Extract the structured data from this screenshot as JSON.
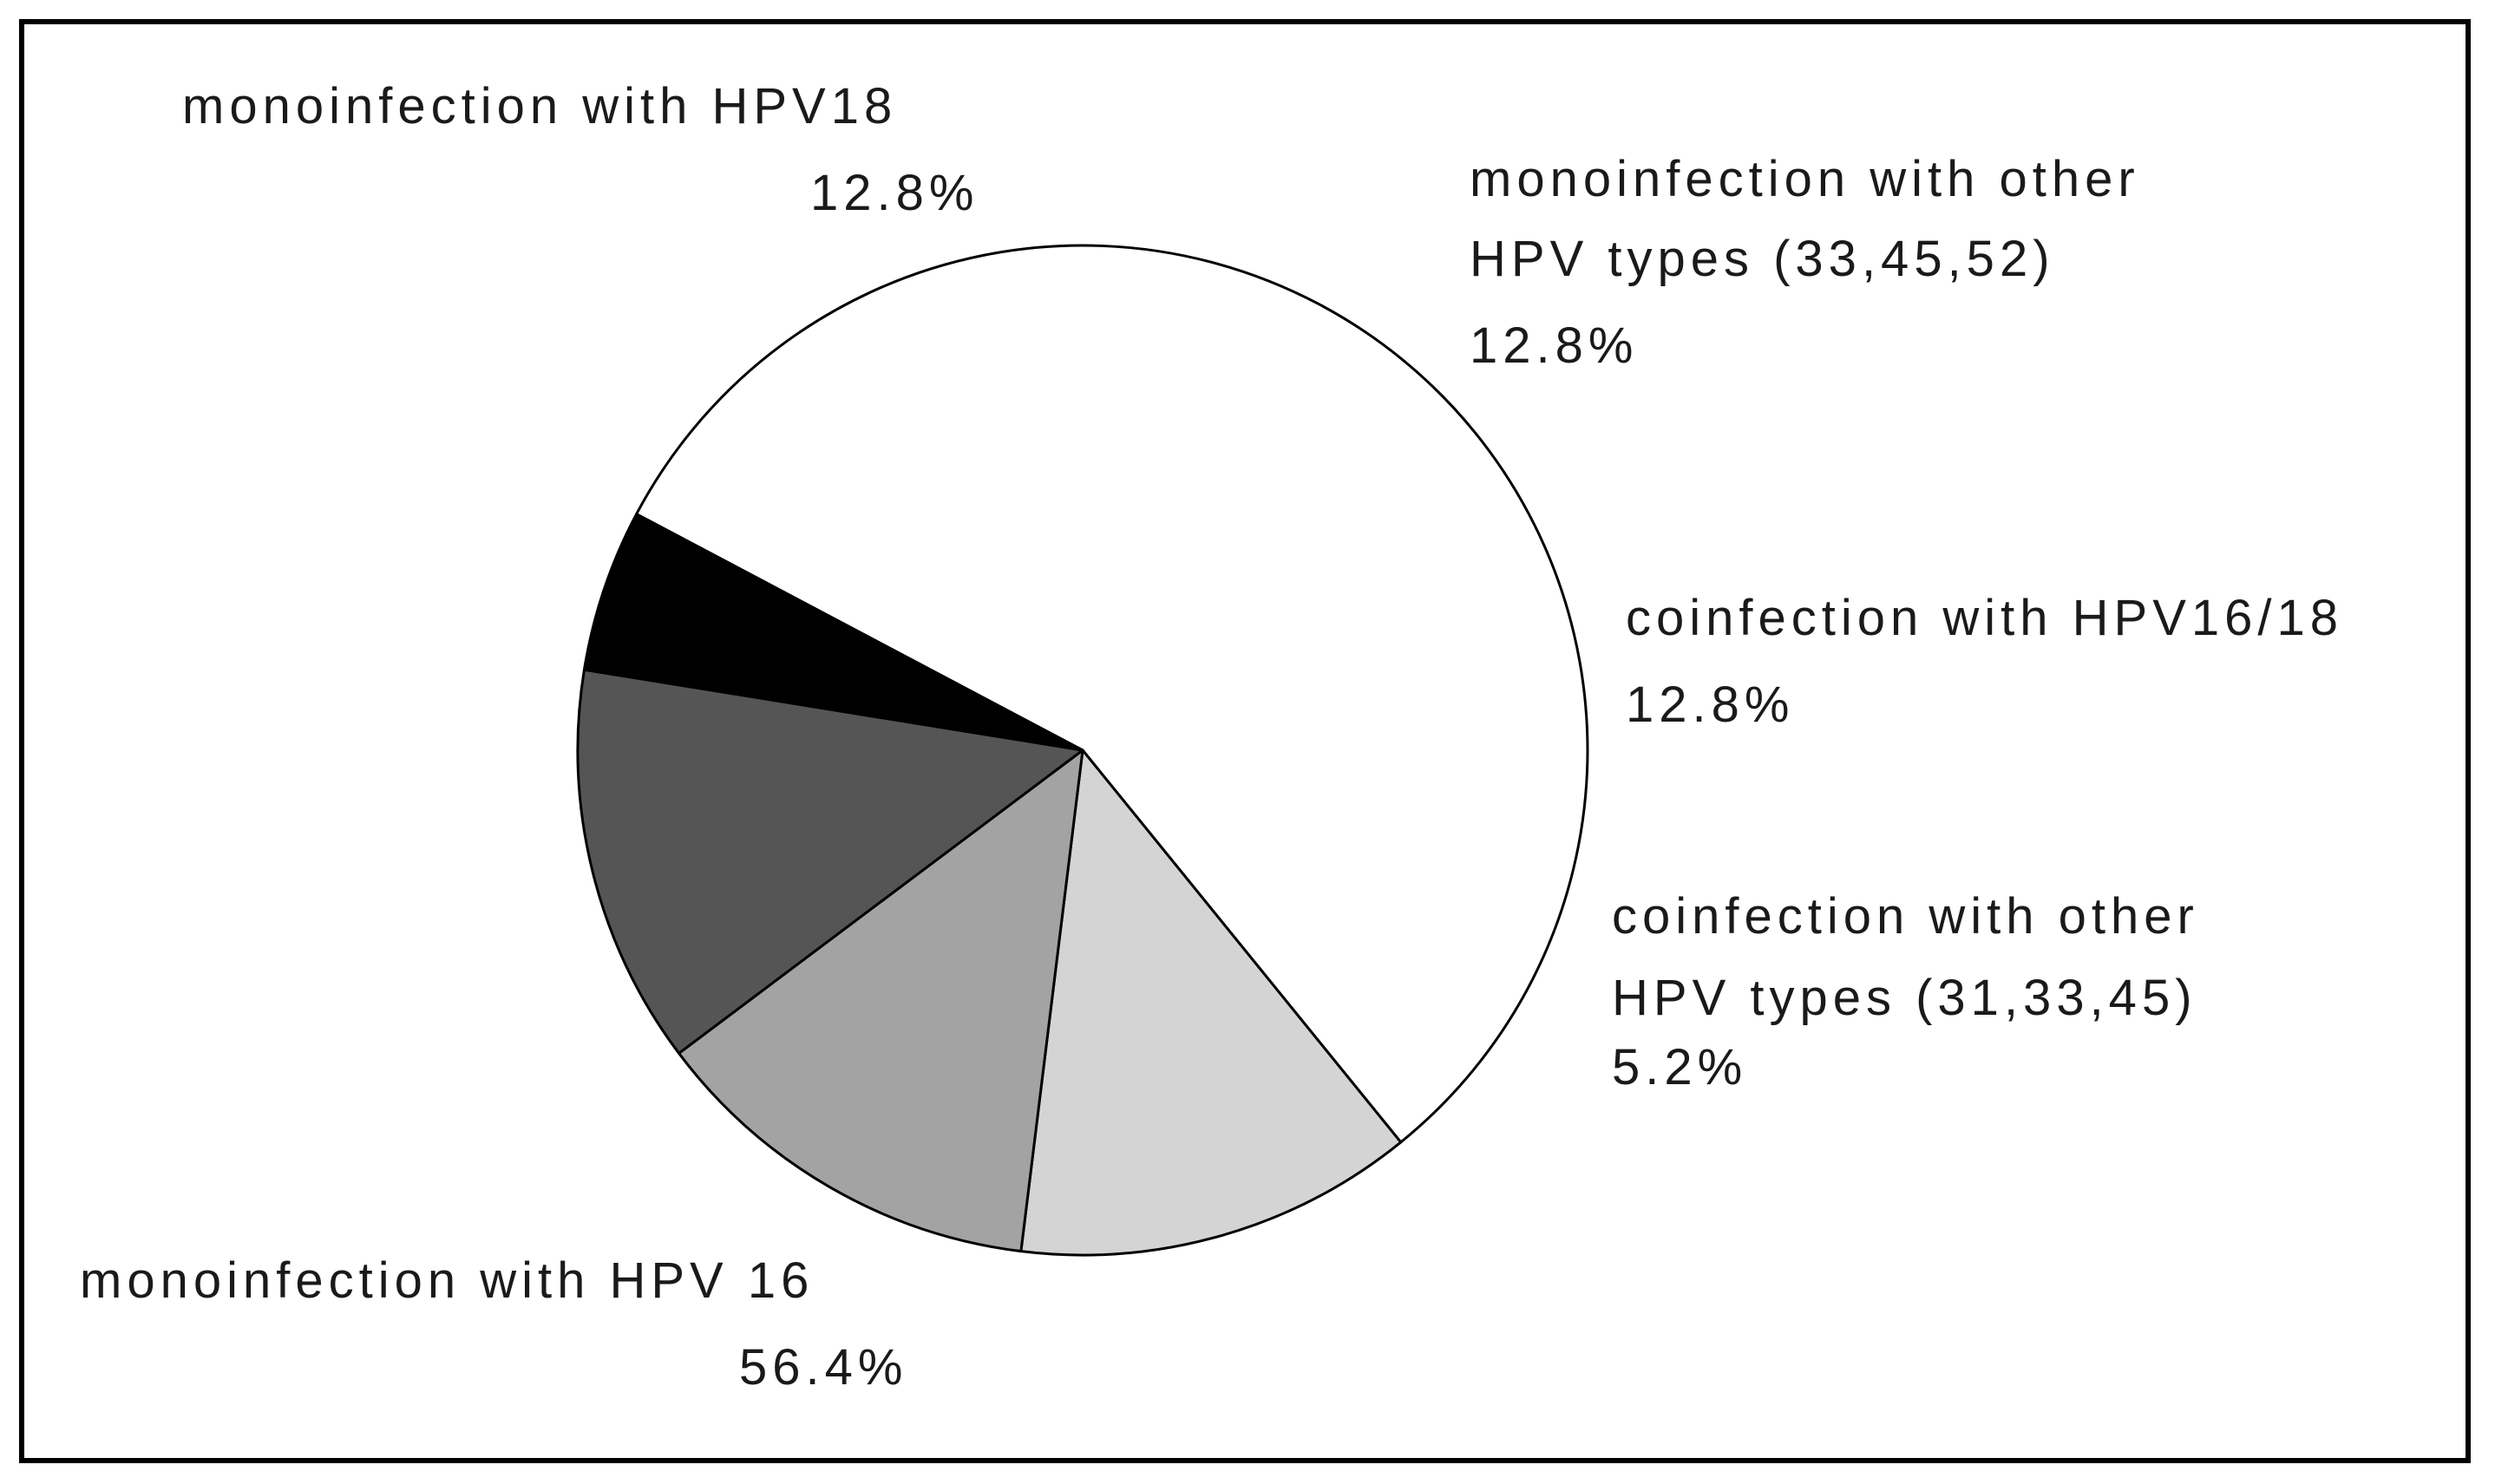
{
  "chart_data": {
    "type": "pie",
    "title": "",
    "slices": [
      {
        "name": "monoinfection with HPV 16",
        "label_lines": [
          "monoinfection with HPV 16"
        ],
        "value_label": "56.4%",
        "value": 56.4,
        "color": "#ffffff"
      },
      {
        "name": "monoinfection with HPV18",
        "label_lines": [
          "monoinfection with HPV18"
        ],
        "value_label": "12.8%",
        "value": 12.8,
        "color": "#d4d4d4"
      },
      {
        "name": "monoinfection with other HPV types (33,45,52)",
        "label_lines": [
          "monoinfection with other",
          "HPV types (33,45,52)"
        ],
        "value_label": "12.8%",
        "value": 12.8,
        "color": "#a3a3a3"
      },
      {
        "name": "coinfection with HPV16/18",
        "label_lines": [
          "coinfection with HPV16/18"
        ],
        "value_label": "12.8%",
        "value": 12.8,
        "color": "#555555"
      },
      {
        "name": "coinfection with other HPV types (31,33,45)",
        "label_lines": [
          "coinfection with other",
          "HPV types (31,33,45)"
        ],
        "value_label": "5.2%",
        "value": 5.2,
        "color": "#000000"
      }
    ]
  }
}
